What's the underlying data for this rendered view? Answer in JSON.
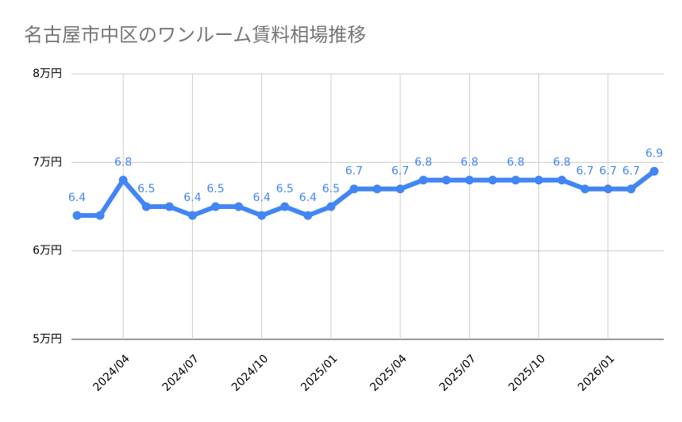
{
  "chart_data": {
    "type": "line",
    "title": "名古屋市中区のワンルーム賃料相場推移",
    "categories": [
      null,
      null,
      "2024/04",
      null,
      null,
      "2024/07",
      null,
      null,
      "2024/10",
      null,
      null,
      "2025/01",
      null,
      null,
      "2025/04",
      null,
      null,
      "2025/07",
      null,
      null,
      "2025/10",
      null,
      null,
      "2026/01",
      null,
      null
    ],
    "values": [
      6.4,
      6.4,
      6.8,
      6.5,
      6.5,
      6.4,
      6.5,
      6.5,
      6.4,
      6.5,
      6.4,
      6.5,
      6.7,
      6.7,
      6.7,
      6.8,
      6.8,
      6.8,
      6.8,
      6.8,
      6.8,
      6.8,
      6.7,
      6.7,
      6.7,
      6.9
    ],
    "value_labels": [
      "6.4",
      null,
      "6.8",
      "6.5",
      null,
      "6.4",
      "6.5",
      null,
      "6.4",
      "6.5",
      "6.4",
      "6.5",
      "6.7",
      null,
      "6.7",
      "6.8",
      null,
      "6.8",
      null,
      "6.8",
      null,
      "6.8",
      "6.7",
      "6.7",
      "6.7",
      "6.9"
    ],
    "color": "#4285f4",
    "ylim": [
      5,
      8
    ],
    "yticks": [
      {
        "value": 5,
        "label": "5万円"
      },
      {
        "value": 6,
        "label": "6万円"
      },
      {
        "value": 7,
        "label": "7万円"
      },
      {
        "value": 8,
        "label": "8万円"
      }
    ],
    "grid": true
  }
}
